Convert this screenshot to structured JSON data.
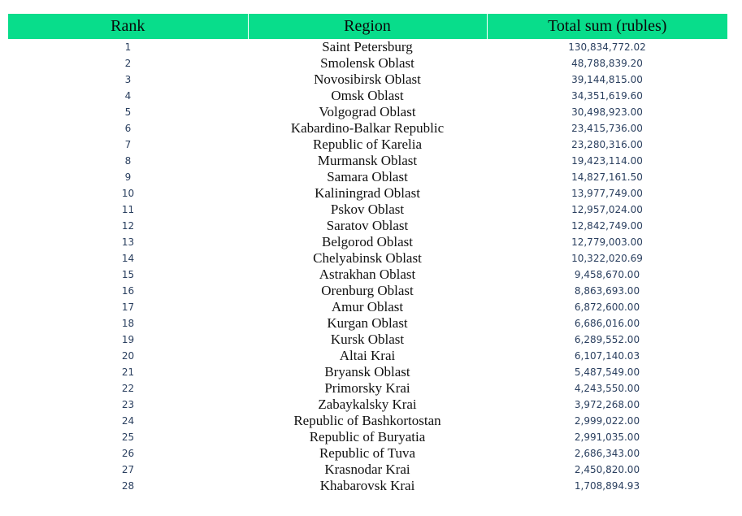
{
  "chart_data": {
    "type": "table",
    "columns": [
      "Rank",
      "Region",
      "Total sum (rubles)"
    ],
    "header_color": "#08dd8b",
    "rows": [
      {
        "rank": "1",
        "region": "Saint Petersburg",
        "total": "130,834,772.02"
      },
      {
        "rank": "2",
        "region": "Smolensk Oblast",
        "total": "48,788,839.20"
      },
      {
        "rank": "3",
        "region": "Novosibirsk Oblast",
        "total": "39,144,815.00"
      },
      {
        "rank": "4",
        "region": "Omsk Oblast",
        "total": "34,351,619.60"
      },
      {
        "rank": "5",
        "region": "Volgograd Oblast",
        "total": "30,498,923.00"
      },
      {
        "rank": "6",
        "region": "Kabardino-Balkar Republic",
        "total": "23,415,736.00"
      },
      {
        "rank": "7",
        "region": "Republic of Karelia",
        "total": "23,280,316.00"
      },
      {
        "rank": "8",
        "region": "Murmansk Oblast",
        "total": "19,423,114.00"
      },
      {
        "rank": "9",
        "region": "Samara Oblast",
        "total": "14,827,161.50"
      },
      {
        "rank": "10",
        "region": "Kaliningrad Oblast",
        "total": "13,977,749.00"
      },
      {
        "rank": "11",
        "region": "Pskov Oblast",
        "total": "12,957,024.00"
      },
      {
        "rank": "12",
        "region": "Saratov Oblast",
        "total": "12,842,749.00"
      },
      {
        "rank": "13",
        "region": "Belgorod Oblast",
        "total": "12,779,003.00"
      },
      {
        "rank": "14",
        "region": "Chelyabinsk Oblast",
        "total": "10,322,020.69"
      },
      {
        "rank": "15",
        "region": "Astrakhan Oblast",
        "total": "9,458,670.00"
      },
      {
        "rank": "16",
        "region": "Orenburg Oblast",
        "total": "8,863,693.00"
      },
      {
        "rank": "17",
        "region": "Amur Oblast",
        "total": "6,872,600.00"
      },
      {
        "rank": "18",
        "region": "Kurgan Oblast",
        "total": "6,686,016.00"
      },
      {
        "rank": "19",
        "region": "Kursk Oblast",
        "total": "6,289,552.00"
      },
      {
        "rank": "20",
        "region": "Altai Krai",
        "total": "6,107,140.03"
      },
      {
        "rank": "21",
        "region": "Bryansk Oblast",
        "total": "5,487,549.00"
      },
      {
        "rank": "22",
        "region": "Primorsky Krai",
        "total": "4,243,550.00"
      },
      {
        "rank": "23",
        "region": "Zabaykalsky Krai",
        "total": "3,972,268.00"
      },
      {
        "rank": "24",
        "region": "Republic of Bashkortostan",
        "total": "2,999,022.00"
      },
      {
        "rank": "25",
        "region": "Republic of Buryatia",
        "total": "2,991,035.00"
      },
      {
        "rank": "26",
        "region": "Republic of Tuva",
        "total": "2,686,343.00"
      },
      {
        "rank": "27",
        "region": "Krasnodar Krai",
        "total": "2,450,820.00"
      },
      {
        "rank": "28",
        "region": "Khabarovsk Krai",
        "total": "1,708,894.93"
      }
    ]
  }
}
